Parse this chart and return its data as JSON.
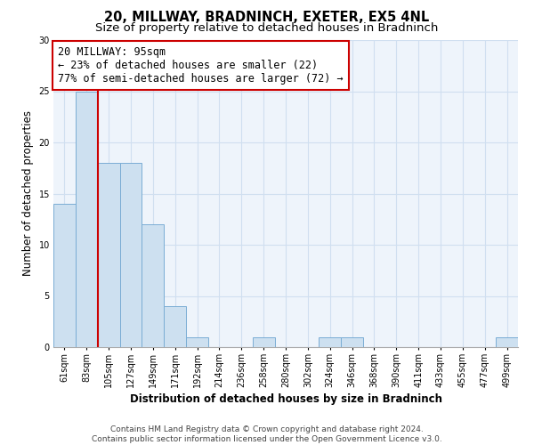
{
  "title": "20, MILLWAY, BRADNINCH, EXETER, EX5 4NL",
  "subtitle": "Size of property relative to detached houses in Bradninch",
  "xlabel": "Distribution of detached houses by size in Bradninch",
  "ylabel": "Number of detached properties",
  "bar_labels": [
    "61sqm",
    "83sqm",
    "105sqm",
    "127sqm",
    "149sqm",
    "171sqm",
    "192sqm",
    "214sqm",
    "236sqm",
    "258sqm",
    "280sqm",
    "302sqm",
    "324sqm",
    "346sqm",
    "368sqm",
    "390sqm",
    "411sqm",
    "433sqm",
    "455sqm",
    "477sqm",
    "499sqm"
  ],
  "bar_values": [
    14,
    25,
    18,
    18,
    12,
    4,
    1,
    0,
    0,
    1,
    0,
    0,
    1,
    1,
    0,
    0,
    0,
    0,
    0,
    0,
    1
  ],
  "bar_color": "#cde0f0",
  "bar_edge_color": "#7aadd4",
  "vline_x": 1.5,
  "vline_color": "#cc0000",
  "annotation_line1": "20 MILLWAY: 95sqm",
  "annotation_line2": "← 23% of detached houses are smaller (22)",
  "annotation_line3": "77% of semi-detached houses are larger (72) →",
  "annotation_box_color": "#ffffff",
  "annotation_box_edge": "#cc0000",
  "ylim": [
    0,
    30
  ],
  "yticks": [
    0,
    5,
    10,
    15,
    20,
    25,
    30
  ],
  "grid_color": "#d0dff0",
  "footer_line1": "Contains HM Land Registry data © Crown copyright and database right 2024.",
  "footer_line2": "Contains public sector information licensed under the Open Government Licence v3.0.",
  "title_fontsize": 10.5,
  "subtitle_fontsize": 9.5,
  "annotation_fontsize": 8.5,
  "xlabel_fontsize": 8.5,
  "ylabel_fontsize": 8.5,
  "tick_fontsize": 7,
  "footer_fontsize": 6.5,
  "bg_color": "#eef4fb"
}
